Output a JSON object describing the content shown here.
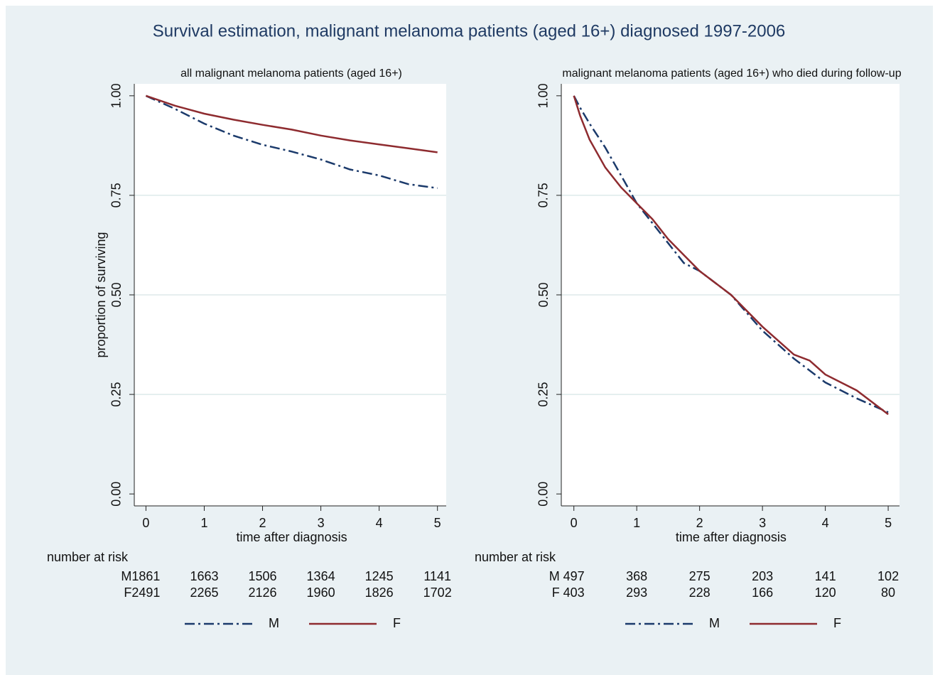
{
  "title": "Survival estimation, malignant melanoma patients (aged 16+) diagnosed 1997-2006",
  "chart_data": [
    {
      "type": "line",
      "title": "all malignant melanoma patients (aged 16+)",
      "xlabel": "time after diagnosis",
      "ylabel": "proportion of surviving",
      "xlim": [
        -0.2,
        5.15
      ],
      "ylim": [
        -0.03,
        1.03
      ],
      "xticks": [
        0,
        1,
        2,
        3,
        4,
        5
      ],
      "yticks": [
        {
          "value": 0,
          "label": "0.00"
        },
        {
          "value": 0.25,
          "label": "0.25"
        },
        {
          "value": 0.5,
          "label": "0.50"
        },
        {
          "value": 0.75,
          "label": "0.75"
        },
        {
          "value": 1,
          "label": "1.00"
        }
      ],
      "grid": true,
      "series": [
        {
          "name": "M",
          "color": "#1b3a6b",
          "dash": "dash-dot",
          "x": [
            0,
            0.5,
            1,
            1.5,
            2,
            2.5,
            3,
            3.5,
            4,
            4.5,
            5
          ],
          "values": [
            1.0,
            0.967,
            0.93,
            0.9,
            0.877,
            0.86,
            0.84,
            0.815,
            0.8,
            0.778,
            0.768
          ]
        },
        {
          "name": "F",
          "color": "#8e2b2f",
          "dash": "solid",
          "x": [
            0,
            0.5,
            1,
            1.5,
            2,
            2.5,
            3,
            3.5,
            4,
            4.5,
            5
          ],
          "values": [
            1.0,
            0.975,
            0.955,
            0.94,
            0.927,
            0.915,
            0.9,
            0.888,
            0.878,
            0.868,
            0.858
          ]
        }
      ],
      "risk_table": {
        "title": "number at risk",
        "rows": [
          {
            "name": "M",
            "values": [
              1861,
              1663,
              1506,
              1364,
              1245,
              1141
            ]
          },
          {
            "name": "F",
            "values": [
              2491,
              2265,
              2126,
              1960,
              1826,
              1702
            ]
          }
        ]
      }
    },
    {
      "type": "line",
      "title": "malignant melanoma patients (aged 16+) who died during follow-up",
      "xlabel": "time after diagnosis",
      "xlim": [
        -0.2,
        5.18
      ],
      "ylim": [
        -0.03,
        1.03
      ],
      "xticks": [
        0,
        1,
        2,
        3,
        4,
        5
      ],
      "yticks": [
        {
          "value": 0,
          "label": "0.00"
        },
        {
          "value": 0.25,
          "label": "0.25"
        },
        {
          "value": 0.5,
          "label": "0.50"
        },
        {
          "value": 0.75,
          "label": "0.75"
        },
        {
          "value": 1,
          "label": "1.00"
        }
      ],
      "grid": true,
      "series": [
        {
          "name": "M",
          "color": "#1b3a6b",
          "dash": "dash-dot",
          "x": [
            0,
            0.1,
            0.25,
            0.5,
            0.75,
            1,
            1.25,
            1.5,
            1.75,
            2,
            2.5,
            3,
            3.5,
            4,
            4.5,
            5
          ],
          "values": [
            1.0,
            0.97,
            0.93,
            0.87,
            0.8,
            0.73,
            0.68,
            0.63,
            0.58,
            0.56,
            0.5,
            0.41,
            0.34,
            0.28,
            0.24,
            0.205
          ]
        },
        {
          "name": "F",
          "color": "#8e2b2f",
          "dash": "solid",
          "x": [
            0,
            0.1,
            0.25,
            0.5,
            0.75,
            1,
            1.25,
            1.5,
            1.75,
            2,
            2.5,
            3,
            3.5,
            3.75,
            4,
            4.5,
            5
          ],
          "values": [
            1.0,
            0.95,
            0.89,
            0.82,
            0.77,
            0.73,
            0.69,
            0.64,
            0.6,
            0.56,
            0.5,
            0.42,
            0.35,
            0.335,
            0.3,
            0.26,
            0.2
          ]
        }
      ],
      "risk_table": {
        "title": "number at risk",
        "rows": [
          {
            "name": "M",
            "values": [
              497,
              368,
              275,
              203,
              141,
              102
            ]
          },
          {
            "name": "F",
            "values": [
              403,
              293,
              228,
              166,
              120,
              80
            ]
          }
        ]
      }
    }
  ]
}
